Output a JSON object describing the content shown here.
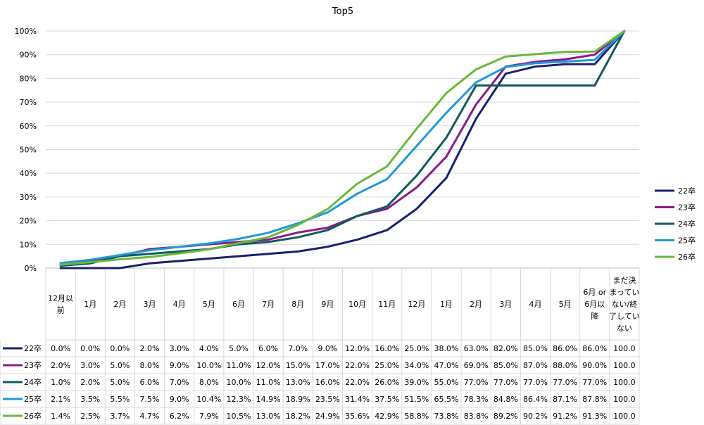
{
  "chart_data": {
    "type": "line",
    "title": "Top5",
    "xlabel": "",
    "ylabel": "",
    "ylim": [
      0,
      100
    ],
    "y_unit": "%",
    "y_ticks": [
      "0%",
      "10%",
      "20%",
      "30%",
      "40%",
      "50%",
      "60%",
      "70%",
      "80%",
      "90%",
      "100%"
    ],
    "grid": "horizontal",
    "legend_position": "right",
    "categories": [
      "12月以前",
      "1月",
      "2月",
      "3月",
      "4月",
      "5月",
      "6月",
      "7月",
      "8月",
      "9月",
      "10月",
      "11月",
      "12月",
      "1月",
      "2月",
      "3月",
      "4月",
      "5月",
      "6月 or 6月以降",
      "まだ決まっていない/終了していない"
    ],
    "category_label_lines": [
      [
        "12月以",
        "前"
      ],
      [
        "1月"
      ],
      [
        "2月"
      ],
      [
        "3月"
      ],
      [
        "4月"
      ],
      [
        "5月"
      ],
      [
        "6月"
      ],
      [
        "7月"
      ],
      [
        "8月"
      ],
      [
        "9月"
      ],
      [
        "10月"
      ],
      [
        "11月"
      ],
      [
        "12月"
      ],
      [
        "1月"
      ],
      [
        "2月"
      ],
      [
        "3月"
      ],
      [
        "4月"
      ],
      [
        "5月"
      ],
      [
        "6月 or",
        "6月以",
        "降"
      ],
      [
        "まだ決",
        "まってい",
        "ない/終",
        "了してい",
        "ない"
      ]
    ],
    "series": [
      {
        "name": "22卒",
        "color": "#1a1f6e",
        "values": [
          0,
          0,
          0,
          2,
          3,
          4,
          5,
          6,
          7,
          9,
          12,
          16,
          25,
          38,
          63,
          82,
          85,
          86,
          86,
          100
        ],
        "table_cells": [
          "0.0%",
          "0.0%",
          "0.0%",
          "2.0%",
          "3.0%",
          "4.0%",
          "5.0%",
          "6.0%",
          "7.0%",
          "9.0%",
          "12.0%",
          "16.0%",
          "25.0%",
          "38.0%",
          "63.0%",
          "82.0%",
          "85.0%",
          "86.0%",
          "86.0%",
          "100.0"
        ]
      },
      {
        "name": "23卒",
        "color": "#8b1a8b",
        "values": [
          2,
          3,
          5,
          8,
          9,
          10,
          11,
          12,
          15,
          17,
          22,
          25,
          34,
          47,
          69,
          85,
          87,
          88,
          90,
          100
        ],
        "table_cells": [
          "2.0%",
          "3.0%",
          "5.0%",
          "8.0%",
          "9.0%",
          "10.0%",
          "11.0%",
          "12.0%",
          "15.0%",
          "17.0%",
          "22.0%",
          "25.0%",
          "34.0%",
          "47.0%",
          "69.0%",
          "85.0%",
          "87.0%",
          "88.0%",
          "90.0%",
          "100.0"
        ]
      },
      {
        "name": "24卒",
        "color": "#0e5a5e",
        "values": [
          1,
          2,
          5,
          6,
          7,
          8,
          10,
          11,
          13,
          16,
          22,
          26,
          39,
          55,
          77,
          77,
          77,
          77,
          77,
          100
        ],
        "table_cells": [
          "1.0%",
          "2.0%",
          "5.0%",
          "6.0%",
          "7.0%",
          "8.0%",
          "10.0%",
          "11.0%",
          "13.0%",
          "16.0%",
          "22.0%",
          "26.0%",
          "39.0%",
          "55.0%",
          "77.0%",
          "77.0%",
          "77.0%",
          "77.0%",
          "77.0%",
          "100.0"
        ]
      },
      {
        "name": "25卒",
        "color": "#1f9ad6",
        "values": [
          2.1,
          3.5,
          5.5,
          7.5,
          9.0,
          10.4,
          12.3,
          14.9,
          18.9,
          23.5,
          31.4,
          37.5,
          51.5,
          65.5,
          78.3,
          84.8,
          86.4,
          87.1,
          87.8,
          100.0
        ],
        "table_cells": [
          "2.1%",
          "3.5%",
          "5.5%",
          "7.5%",
          "9.0%",
          "10.4%",
          "12.3%",
          "14.9%",
          "18.9%",
          "23.5%",
          "31.4%",
          "37.5%",
          "51.5%",
          "65.5%",
          "78.3%",
          "84.8%",
          "86.4%",
          "87.1%",
          "87.8%",
          "100.0"
        ]
      },
      {
        "name": "26卒",
        "color": "#6ab83a",
        "values": [
          1.4,
          2.5,
          3.7,
          4.7,
          6.2,
          7.9,
          10.5,
          13.0,
          18.2,
          24.9,
          35.6,
          42.9,
          58.8,
          73.8,
          83.8,
          89.2,
          90.2,
          91.2,
          91.3,
          100.0
        ],
        "table_cells": [
          "1.4%",
          "2.5%",
          "3.7%",
          "4.7%",
          "6.2%",
          "7.9%",
          "10.5%",
          "13.0%",
          "18.2%",
          "24.9%",
          "35.6%",
          "42.9%",
          "58.8%",
          "73.8%",
          "83.8%",
          "89.2%",
          "90.2%",
          "91.2%",
          "91.3%",
          "100.0"
        ]
      }
    ]
  }
}
